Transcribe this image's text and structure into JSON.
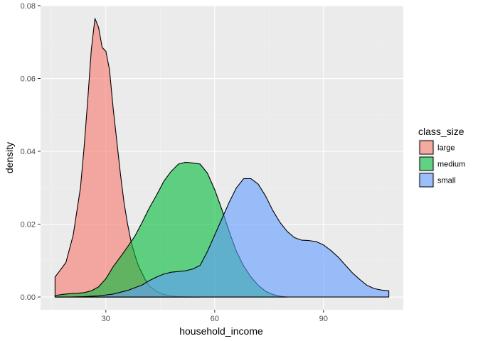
{
  "chart_data": {
    "type": "area",
    "subtype": "density",
    "title": "",
    "xlabel": "household_income",
    "ylabel": "density",
    "xlim": [
      12,
      112
    ],
    "ylim": [
      -0.0035,
      0.08
    ],
    "x_ticks": [
      30,
      60,
      90
    ],
    "x_tick_labels": [
      "30",
      "60",
      "90"
    ],
    "y_ticks": [
      0.0,
      0.02,
      0.04,
      0.06,
      0.08
    ],
    "y_tick_labels": [
      "0.00",
      "0.02",
      "0.04",
      "0.06",
      "0.08"
    ],
    "grid": true,
    "panel_background": "#ebebeb",
    "fill_opacity": 0.6,
    "legend": {
      "title": "class_size",
      "position": "right"
    },
    "series": [
      {
        "name": "large",
        "color": "#F8766D",
        "x": [
          16,
          17,
          19,
          21,
          23,
          24,
          25,
          26,
          27,
          28,
          29,
          30,
          31,
          32,
          33,
          34,
          35,
          36,
          37,
          38,
          39,
          40,
          41,
          42,
          44,
          46,
          48,
          50,
          52,
          54,
          56
        ],
        "y": [
          0.0055,
          0.0068,
          0.0095,
          0.017,
          0.03,
          0.041,
          0.054,
          0.068,
          0.0765,
          0.074,
          0.0685,
          0.0675,
          0.0625,
          0.052,
          0.043,
          0.034,
          0.026,
          0.02,
          0.015,
          0.0115,
          0.0085,
          0.0065,
          0.0045,
          0.003,
          0.0015,
          0.0007,
          0.0003,
          0.0001,
          5e-05,
          0.0,
          0.0
        ]
      },
      {
        "name": "medium",
        "color": "#00BA38",
        "x": [
          16,
          18,
          20,
          22,
          24,
          26,
          28,
          30,
          32,
          34,
          36,
          38,
          40,
          42,
          44,
          46,
          48,
          50,
          52,
          54,
          56,
          58,
          60,
          62,
          64,
          66,
          68,
          70,
          72,
          74,
          76,
          78,
          80
        ],
        "y": [
          0.0004,
          0.0007,
          0.0009,
          0.001,
          0.0012,
          0.0017,
          0.0028,
          0.005,
          0.0083,
          0.011,
          0.0138,
          0.0167,
          0.0205,
          0.0245,
          0.028,
          0.0318,
          0.0345,
          0.0365,
          0.037,
          0.0368,
          0.0365,
          0.034,
          0.0295,
          0.024,
          0.018,
          0.0125,
          0.0085,
          0.0055,
          0.0032,
          0.0016,
          0.0007,
          0.0002,
          0.0
        ]
      },
      {
        "name": "small",
        "color": "#619CFF",
        "x": [
          16,
          20,
          24,
          28,
          32,
          36,
          40,
          42,
          44,
          46,
          48,
          50,
          52,
          54,
          56,
          58,
          60,
          62,
          64,
          66,
          68,
          70,
          72,
          74,
          76,
          78,
          80,
          82,
          84,
          86,
          88,
          90,
          92,
          94,
          96,
          98,
          100,
          102,
          104,
          106,
          108
        ],
        "y": [
          0.0,
          0.0,
          0.0001,
          0.0003,
          0.0008,
          0.0018,
          0.0033,
          0.0045,
          0.0055,
          0.0063,
          0.0068,
          0.007,
          0.0072,
          0.0077,
          0.0087,
          0.0125,
          0.017,
          0.0215,
          0.026,
          0.03,
          0.0325,
          0.0325,
          0.031,
          0.0278,
          0.0238,
          0.0205,
          0.018,
          0.0163,
          0.0156,
          0.0155,
          0.0152,
          0.0143,
          0.0128,
          0.011,
          0.0088,
          0.0066,
          0.0048,
          0.0032,
          0.0023,
          0.0019,
          0.0017
        ]
      }
    ]
  }
}
